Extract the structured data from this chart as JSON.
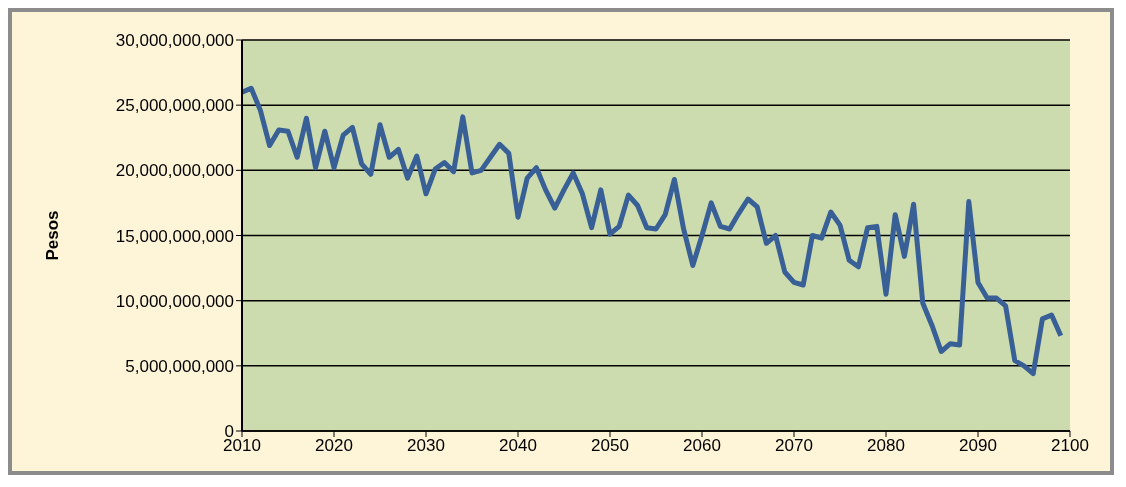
{
  "chart_data": {
    "type": "line",
    "ylabel": "Pesos",
    "x": [
      2010,
      2011,
      2012,
      2013,
      2014,
      2015,
      2016,
      2017,
      2018,
      2019,
      2020,
      2021,
      2022,
      2023,
      2024,
      2025,
      2026,
      2027,
      2028,
      2029,
      2030,
      2031,
      2032,
      2033,
      2034,
      2035,
      2036,
      2037,
      2038,
      2039,
      2040,
      2041,
      2042,
      2043,
      2044,
      2045,
      2046,
      2047,
      2048,
      2049,
      2050,
      2051,
      2052,
      2053,
      2054,
      2055,
      2056,
      2057,
      2058,
      2059,
      2060,
      2061,
      2062,
      2063,
      2064,
      2065,
      2066,
      2067,
      2068,
      2069,
      2070,
      2071,
      2072,
      2073,
      2074,
      2075,
      2076,
      2077,
      2078,
      2079,
      2080,
      2081,
      2082,
      2083,
      2084,
      2085,
      2086,
      2087,
      2088,
      2089,
      2090,
      2091,
      2092,
      2093,
      2094,
      2095,
      2096,
      2097,
      2098,
      2099
    ],
    "series": [
      {
        "color": "#386096",
        "values": [
          26000000000,
          26300000000,
          24600000000,
          21900000000,
          23100000000,
          23000000000,
          21000000000,
          24000000000,
          20200000000,
          23000000000,
          20200000000,
          22700000000,
          23300000000,
          20500000000,
          19700000000,
          23500000000,
          21000000000,
          21600000000,
          19400000000,
          21100000000,
          18200000000,
          20100000000,
          20600000000,
          19900000000,
          24100000000,
          19800000000,
          20000000000,
          21000000000,
          22000000000,
          21300000000,
          16400000000,
          19400000000,
          20200000000,
          18500000000,
          17100000000,
          18500000000,
          19800000000,
          18200000000,
          15600000000,
          18500000000,
          15100000000,
          15700000000,
          18100000000,
          17300000000,
          15600000000,
          15500000000,
          16600000000,
          19300000000,
          15500000000,
          12700000000,
          15000000000,
          17500000000,
          15700000000,
          15500000000,
          16700000000,
          17800000000,
          17200000000,
          14400000000,
          15000000000,
          12200000000,
          11400000000,
          11200000000,
          15000000000,
          14800000000,
          16800000000,
          15800000000,
          13100000000,
          12600000000,
          15600000000,
          15700000000,
          10500000000,
          16600000000,
          13400000000,
          17400000000,
          9800000000,
          8100000000,
          6100000000,
          6700000000,
          6600000000,
          17600000000,
          11400000000,
          10200000000,
          10200000000,
          9600000000,
          5400000000,
          5000000000,
          4400000000,
          8600000000,
          8900000000,
          7300000000
        ]
      }
    ],
    "xlim": [
      2010,
      2100
    ],
    "xticks": [
      2010,
      2020,
      2030,
      2040,
      2050,
      2060,
      2070,
      2080,
      2090,
      2100
    ],
    "ylim": [
      0,
      30000000000
    ],
    "yticks": [
      0,
      {
        "value": 5000000000,
        "label": "5,000,000,000"
      },
      {
        "value": 10000000000,
        "label": "10,000,000,000"
      },
      {
        "value": 15000000000,
        "label": "15,000,000,000"
      },
      {
        "value": 20000000000,
        "label": "20,000,000,000"
      },
      {
        "value": 25000000000,
        "label": "25,000,000,000"
      },
      {
        "value": 30000000000,
        "label": "30,000,000,000"
      }
    ],
    "grid": "y",
    "legend": false,
    "marker": "none",
    "line_style": "solid"
  }
}
